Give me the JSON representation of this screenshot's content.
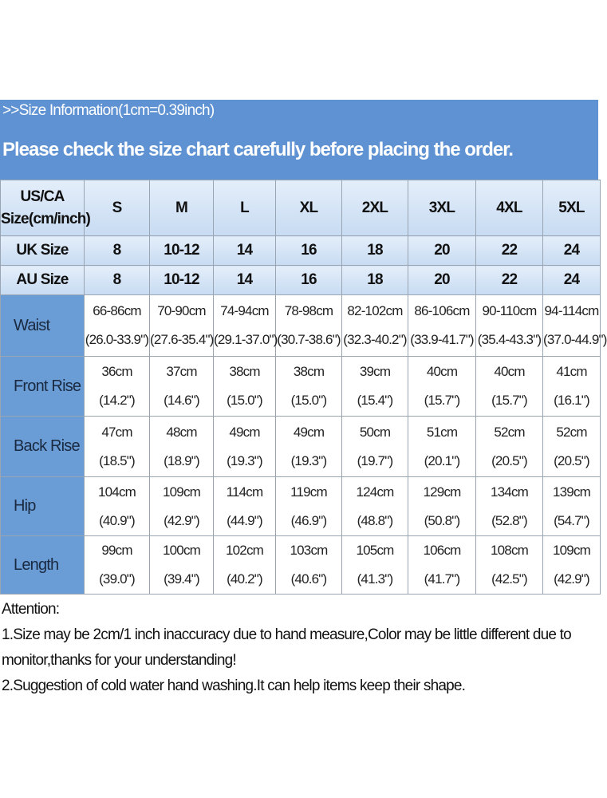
{
  "header": {
    "info": ">>Size Information(1cm=0.39inch)",
    "notice": "Please check the size chart carefully before placing the order."
  },
  "table": {
    "corner": "US/CA\nSize(cm/inch)",
    "sizes": [
      "S",
      "M",
      "L",
      "XL",
      "2XL",
      "3XL",
      "4XL",
      "5XL"
    ],
    "size_rows": [
      {
        "label": "UK Size",
        "values": [
          "8",
          "10-12",
          "14",
          "16",
          "18",
          "20",
          "22",
          "24"
        ]
      },
      {
        "label": "AU Size",
        "values": [
          "8",
          "10-12",
          "14",
          "16",
          "18",
          "20",
          "22",
          "24"
        ]
      }
    ],
    "measure_rows": [
      {
        "label": "Waist",
        "values": [
          [
            "66-86cm",
            "(26.0-33.9\")"
          ],
          [
            "70-90cm",
            "(27.6-35.4\")"
          ],
          [
            "74-94cm",
            "(29.1-37.0\")"
          ],
          [
            "78-98cm",
            "(30.7-38.6\")"
          ],
          [
            "82-102cm",
            "(32.3-40.2\")"
          ],
          [
            "86-106cm",
            "(33.9-41.7\")"
          ],
          [
            "90-110cm",
            "(35.4-43.3\")"
          ],
          [
            "94-114cm",
            "(37.0-44.9\")"
          ]
        ]
      },
      {
        "label": "Front Rise",
        "values": [
          [
            "36cm",
            "(14.2\")"
          ],
          [
            "37cm",
            "(14.6\")"
          ],
          [
            "38cm",
            "(15.0\")"
          ],
          [
            "38cm",
            "(15.0\")"
          ],
          [
            "39cm",
            "(15.4\")"
          ],
          [
            "40cm",
            "(15.7\")"
          ],
          [
            "40cm",
            "(15.7\")"
          ],
          [
            "41cm",
            "(16.1\")"
          ]
        ]
      },
      {
        "label": "Back Rise",
        "values": [
          [
            "47cm",
            "(18.5\")"
          ],
          [
            "48cm",
            "(18.9\")"
          ],
          [
            "49cm",
            "(19.3\")"
          ],
          [
            "49cm",
            "(19.3\")"
          ],
          [
            "50cm",
            "(19.7\")"
          ],
          [
            "51cm",
            "(20.1\")"
          ],
          [
            "52cm",
            "(20.5\")"
          ],
          [
            "52cm",
            "(20.5\")"
          ]
        ]
      },
      {
        "label": "Hip",
        "values": [
          [
            "104cm",
            "(40.9\")"
          ],
          [
            "109cm",
            "(42.9\")"
          ],
          [
            "114cm",
            "(44.9\")"
          ],
          [
            "119cm",
            "(46.9\")"
          ],
          [
            "124cm",
            "(48.8\")"
          ],
          [
            "129cm",
            "(50.8\")"
          ],
          [
            "134cm",
            "(52.8\")"
          ],
          [
            "139cm",
            "(54.7\")"
          ]
        ]
      },
      {
        "label": "Length",
        "values": [
          [
            "99cm",
            "(39.0\")"
          ],
          [
            "100cm",
            "(39.4\")"
          ],
          [
            "102cm",
            "(40.2\")"
          ],
          [
            "103cm",
            "(40.6\")"
          ],
          [
            "105cm",
            "(41.3\")"
          ],
          [
            "106cm",
            "(41.7\")"
          ],
          [
            "108cm",
            "(42.5\")"
          ],
          [
            "109cm",
            "(42.9\")"
          ]
        ]
      }
    ]
  },
  "notes": {
    "title": "Attention:",
    "items": [
      "1.Size may be 2cm/1 inch inaccuracy due to hand measure,Color may be little different due to monitor,thanks for your understanding!",
      "2.Suggestion of cold water hand washing.It can help items keep their shape."
    ]
  }
}
